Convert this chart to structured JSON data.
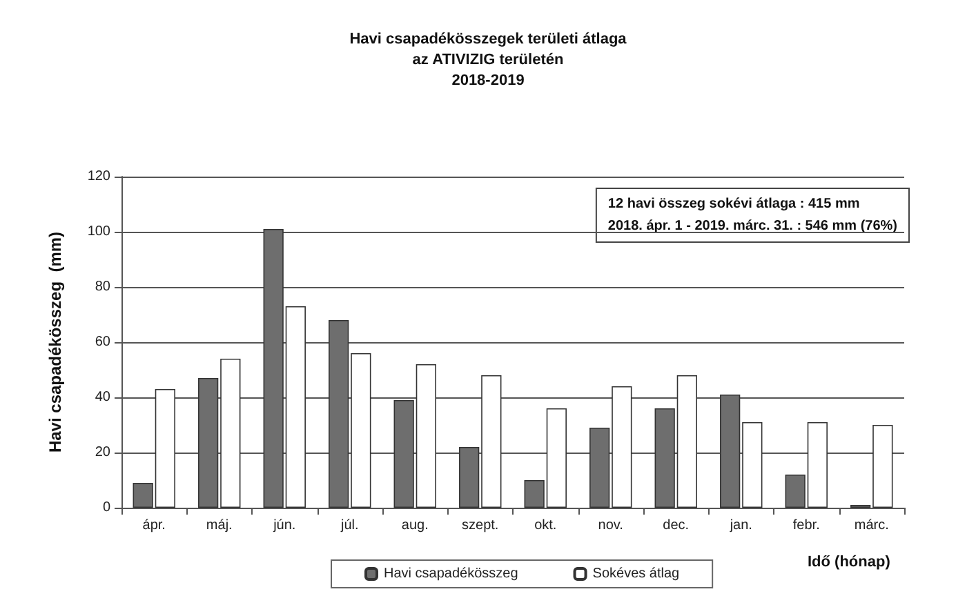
{
  "chart_data": {
    "type": "bar",
    "title": "Havi csapadékösszegek területi átlaga\naz ATIVIZIG területén\n2018-2019",
    "xlabel": "Idő (hónap)",
    "ylabel": "Havi csapadékösszeg  (mm)",
    "categories": [
      "ápr.",
      "máj.",
      "jún.",
      "júl.",
      "aug.",
      "szept.",
      "okt.",
      "nov.",
      "dec.",
      "jan.",
      "febr.",
      "márc."
    ],
    "series": [
      {
        "name": "Havi csapadékösszeg",
        "color": "#6e6e6e",
        "values": [
          9,
          47,
          101,
          68,
          39,
          22,
          10,
          29,
          36,
          41,
          12,
          1
        ]
      },
      {
        "name": "Sokéves átlag",
        "color": "#ffffff",
        "values": [
          43,
          54,
          73,
          56,
          52,
          48,
          36,
          44,
          48,
          31,
          31,
          30
        ]
      }
    ],
    "annotations": [
      "12 havi összeg sokévi átlaga : 415 mm\n2018. ápr. 1 - 2019. márc. 31. : 546 mm (76%)"
    ],
    "ylim": [
      0,
      120
    ],
    "yticks": [
      0,
      20,
      40,
      60,
      80,
      100,
      120
    ],
    "grid": "y",
    "legend": "bottom"
  }
}
